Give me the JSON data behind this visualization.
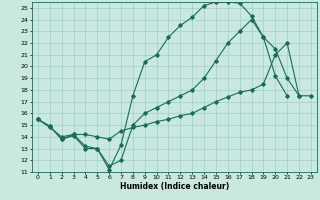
{
  "xlabel": "Humidex (Indice chaleur)",
  "bg_color": "#c8e8e0",
  "grid_color": "#a0d0c8",
  "line_color": "#1a6b5a",
  "xlim": [
    -0.5,
    23.5
  ],
  "ylim": [
    11,
    25.5
  ],
  "yticks": [
    11,
    12,
    13,
    14,
    15,
    16,
    17,
    18,
    19,
    20,
    21,
    22,
    23,
    24,
    25
  ],
  "xticks": [
    0,
    1,
    2,
    3,
    4,
    5,
    6,
    7,
    8,
    9,
    10,
    11,
    12,
    13,
    14,
    15,
    16,
    17,
    18,
    19,
    20,
    21,
    22,
    23
  ],
  "curve1_x": [
    0,
    1,
    2,
    3,
    4,
    5,
    6,
    7,
    8,
    9,
    10,
    11,
    12,
    13,
    14,
    15,
    16,
    17,
    18,
    19,
    20,
    21
  ],
  "curve1_y": [
    15.5,
    14.9,
    13.8,
    14.1,
    13.0,
    13.0,
    11.2,
    13.3,
    17.5,
    20.4,
    21.0,
    22.5,
    23.5,
    24.2,
    25.2,
    25.5,
    25.5,
    25.4,
    24.3,
    22.5,
    19.2,
    17.5
  ],
  "curve2_x": [
    0,
    1,
    2,
    3,
    4,
    5,
    6,
    7,
    8,
    9,
    10,
    11,
    12,
    13,
    14,
    15,
    16,
    17,
    18,
    19,
    20,
    21,
    22
  ],
  "curve2_y": [
    15.5,
    14.9,
    13.8,
    14.2,
    13.2,
    13.0,
    11.5,
    12.0,
    15.0,
    16.0,
    16.5,
    17.0,
    17.5,
    18.0,
    19.0,
    20.5,
    22.0,
    23.0,
    24.0,
    22.5,
    21.5,
    19.0,
    17.5
  ],
  "curve3_x": [
    0,
    1,
    2,
    3,
    4,
    5,
    6,
    7,
    8,
    9,
    10,
    11,
    12,
    13,
    14,
    15,
    16,
    17,
    18,
    19,
    20,
    21,
    22,
    23
  ],
  "curve3_y": [
    15.5,
    14.8,
    14.0,
    14.2,
    14.2,
    14.0,
    13.8,
    14.5,
    14.8,
    15.0,
    15.3,
    15.5,
    15.8,
    16.0,
    16.5,
    17.0,
    17.4,
    17.8,
    18.0,
    18.5,
    21.0,
    22.0,
    17.5,
    17.5
  ],
  "xlabel_fontsize": 5.5,
  "tick_fontsize": 4.5,
  "linewidth": 0.8,
  "markersize": 1.8
}
